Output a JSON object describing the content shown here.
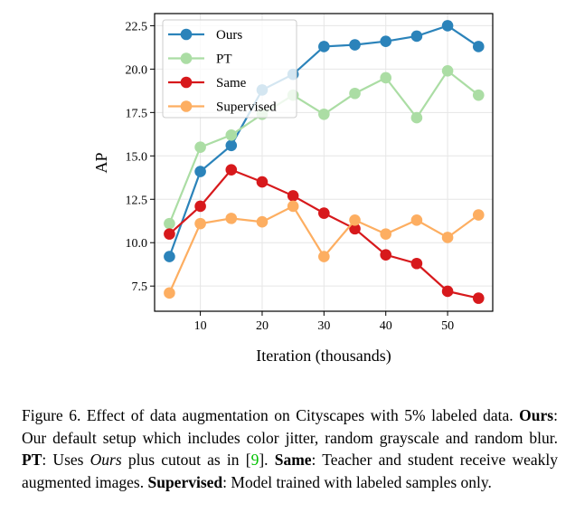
{
  "chart_data": {
    "type": "line",
    "xlabel": "Iteration (thousands)",
    "ylabel": "AP",
    "xlim": [
      2.6,
      57.3
    ],
    "ylim": [
      6.05,
      23.2
    ],
    "xticks": [
      10,
      20,
      30,
      40,
      50
    ],
    "yticks": [
      7.5,
      10.0,
      12.5,
      15.0,
      17.5,
      20.0,
      22.5
    ],
    "ytick_labels": [
      "7.5",
      "10.0",
      "12.5",
      "15.0",
      "17.5",
      "20.0",
      "22.5"
    ],
    "grid": true,
    "legend_position": "top-left",
    "x": [
      5,
      10,
      15,
      20,
      25,
      30,
      35,
      40,
      45,
      50,
      55
    ],
    "series": [
      {
        "name": "Ours",
        "color": "#2b83ba",
        "values": [
          9.2,
          14.1,
          15.6,
          18.8,
          19.7,
          21.3,
          21.4,
          21.6,
          21.9,
          22.5,
          21.3
        ]
      },
      {
        "name": "PT",
        "color": "#abdda4",
        "values": [
          11.1,
          15.5,
          16.2,
          17.4,
          18.5,
          17.4,
          18.6,
          19.5,
          17.2,
          19.9,
          18.5
        ]
      },
      {
        "name": "Same",
        "color": "#d7191c",
        "values": [
          10.5,
          12.1,
          14.2,
          13.5,
          12.7,
          11.7,
          10.8,
          9.3,
          8.8,
          7.2,
          6.8
        ]
      },
      {
        "name": "Supervised",
        "color": "#fdae61",
        "values": [
          7.1,
          11.1,
          11.4,
          11.2,
          12.1,
          9.2,
          11.3,
          10.5,
          11.3,
          10.3,
          11.6
        ]
      }
    ]
  },
  "caption": {
    "label": "Figure 6.",
    "text1": " Effect of data augmentation on Cityscapes with 5% labeled data. ",
    "ours_bold": "Ours",
    "text2": ": Our default setup which includes color jitter, random grayscale and random blur. ",
    "pt_bold": "PT",
    "text3": ": Uses ",
    "ours_italic": "Ours",
    "text4": " plus cutout as in [",
    "cite": "9",
    "text5": "]. ",
    "same_bold": "Same",
    "text6": ": Teacher and student receive weakly augmented images. ",
    "sup_bold": "Supervised",
    "text7": ": Model trained with labeled samples only."
  }
}
